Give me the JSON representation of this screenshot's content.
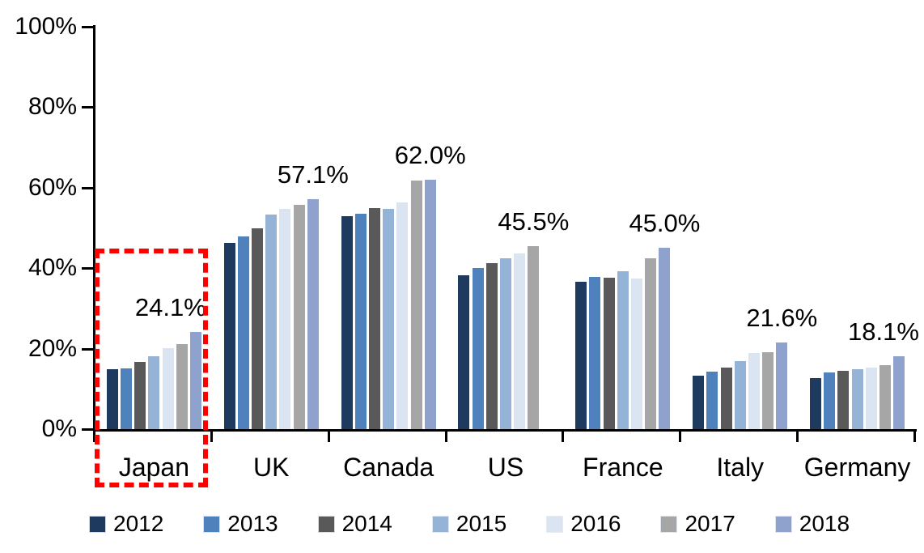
{
  "chart_data": {
    "type": "bar",
    "title": "",
    "xlabel": "",
    "ylabel": "",
    "ylim": [
      0,
      100
    ],
    "grid": false,
    "legend_position": "bottom",
    "y_ticks": [
      {
        "label": "0%",
        "value": 0
      },
      {
        "label": "20%",
        "value": 20
      },
      {
        "label": "40%",
        "value": 40
      },
      {
        "label": "60%",
        "value": 60
      },
      {
        "label": "80%",
        "value": 80
      },
      {
        "label": "100%",
        "value": 100
      }
    ],
    "categories": [
      "Japan",
      "UK",
      "Canada",
      "US",
      "France",
      "Italy",
      "Germany"
    ],
    "series": [
      {
        "name": "2012",
        "color": "#1F3A5F",
        "values": [
          14.9,
          46.3,
          53.0,
          38.3,
          36.6,
          13.3,
          12.6
        ]
      },
      {
        "name": "2013",
        "color": "#4F81BD",
        "values": [
          15.0,
          47.9,
          53.5,
          40.1,
          37.8,
          14.2,
          14.0
        ]
      },
      {
        "name": "2014",
        "color": "#595959",
        "values": [
          16.8,
          50.0,
          55.0,
          41.2,
          37.6,
          15.3,
          14.4
        ]
      },
      {
        "name": "2015",
        "color": "#95B3D7",
        "values": [
          18.2,
          53.3,
          54.8,
          42.4,
          39.3,
          16.9,
          14.8
        ]
      },
      {
        "name": "2016",
        "color": "#DBE5F1",
        "values": [
          20.1,
          54.8,
          56.3,
          43.6,
          37.4,
          18.9,
          15.3
        ]
      },
      {
        "name": "2017",
        "color": "#A6A6A6",
        "values": [
          21.1,
          55.8,
          61.8,
          45.5,
          42.4,
          19.2,
          15.9
        ]
      },
      {
        "name": "2018",
        "color": "#8FA2CE",
        "values": [
          24.1,
          57.1,
          62.0,
          null,
          45.0,
          21.6,
          18.1
        ]
      }
    ],
    "annotations": [
      {
        "category": "Japan",
        "text": "24.1%"
      },
      {
        "category": "UK",
        "text": "57.1%"
      },
      {
        "category": "Canada",
        "text": "62.0%"
      },
      {
        "category": "US",
        "text": "45.5%"
      },
      {
        "category": "France",
        "text": "45.0%"
      },
      {
        "category": "Italy",
        "text": "21.6%"
      },
      {
        "category": "Germany",
        "text": "18.1%"
      }
    ],
    "highlight": {
      "category": "Japan",
      "style": "dashed",
      "color": "#FF0000"
    }
  },
  "colors": {
    "axis": "#000000",
    "background": "#FFFFFF",
    "highlight": "#FF0000"
  }
}
